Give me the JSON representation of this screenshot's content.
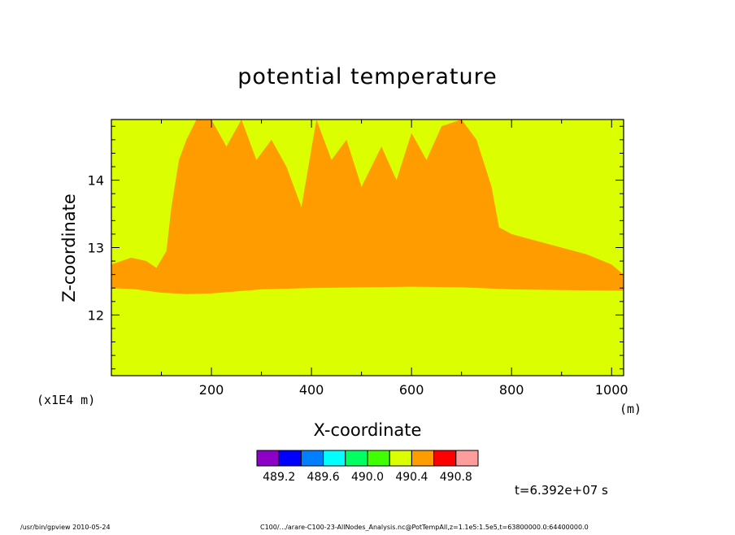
{
  "chart_data": {
    "type": "heatmap",
    "title": "potential temperature",
    "xlabel": "X-coordinate",
    "ylabel": "Z-coordinate",
    "x_unit": "(m)",
    "y_unit": "(x1E4 m)",
    "xlim": [
      0,
      1024
    ],
    "ylim": [
      11.1,
      14.9
    ],
    "x_ticks": [
      200,
      400,
      600,
      800,
      1000
    ],
    "y_ticks": [
      12,
      13,
      14
    ],
    "background_color": "#dcff00",
    "fill_color": "#ff9c00",
    "anomaly_region": {
      "lower_boundary": [
        [
          0,
          12.4
        ],
        [
          50,
          12.38
        ],
        [
          100,
          12.33
        ],
        [
          150,
          12.31
        ],
        [
          200,
          12.32
        ],
        [
          300,
          12.38
        ],
        [
          400,
          12.4
        ],
        [
          500,
          12.41
        ],
        [
          600,
          12.42
        ],
        [
          700,
          12.41
        ],
        [
          800,
          12.38
        ],
        [
          900,
          12.37
        ],
        [
          1024,
          12.36
        ]
      ],
      "upper_boundary": [
        [
          0,
          12.75
        ],
        [
          40,
          12.85
        ],
        [
          70,
          12.8
        ],
        [
          90,
          12.7
        ],
        [
          110,
          12.95
        ],
        [
          120,
          13.6
        ],
        [
          135,
          14.3
        ],
        [
          150,
          14.6
        ],
        [
          170,
          14.9
        ],
        [
          200,
          14.9
        ],
        [
          230,
          14.5
        ],
        [
          260,
          14.9
        ],
        [
          290,
          14.3
        ],
        [
          320,
          14.6
        ],
        [
          350,
          14.2
        ],
        [
          380,
          13.6
        ],
        [
          410,
          14.9
        ],
        [
          440,
          14.3
        ],
        [
          470,
          14.6
        ],
        [
          500,
          13.9
        ],
        [
          540,
          14.5
        ],
        [
          570,
          14.0
        ],
        [
          600,
          14.7
        ],
        [
          630,
          14.3
        ],
        [
          660,
          14.8
        ],
        [
          700,
          14.9
        ],
        [
          730,
          14.6
        ],
        [
          760,
          13.9
        ],
        [
          775,
          13.3
        ],
        [
          800,
          13.2
        ],
        [
          850,
          13.1
        ],
        [
          900,
          13.0
        ],
        [
          950,
          12.9
        ],
        [
          1000,
          12.75
        ],
        [
          1024,
          12.6
        ]
      ]
    },
    "legend": {
      "colors": [
        "#8c00c8",
        "#0000ff",
        "#0080ff",
        "#00ffff",
        "#00ff60",
        "#40ff00",
        "#dcff00",
        "#ff9c00",
        "#ff0000",
        "#ff9c9c"
      ],
      "labels": [
        "489.2",
        "489.6",
        "490.0",
        "490.4",
        "490.8"
      ]
    }
  },
  "annotations": {
    "time": "t=6.392e+07 s",
    "footer_left": "/usr/bin/gpview   2010-05-24",
    "footer_right": "C100/.../arare-C100-23-AllNodes_Analysis.nc@PotTempAll,z=1.1e5:1.5e5,t=63800000.0:64400000.0"
  }
}
